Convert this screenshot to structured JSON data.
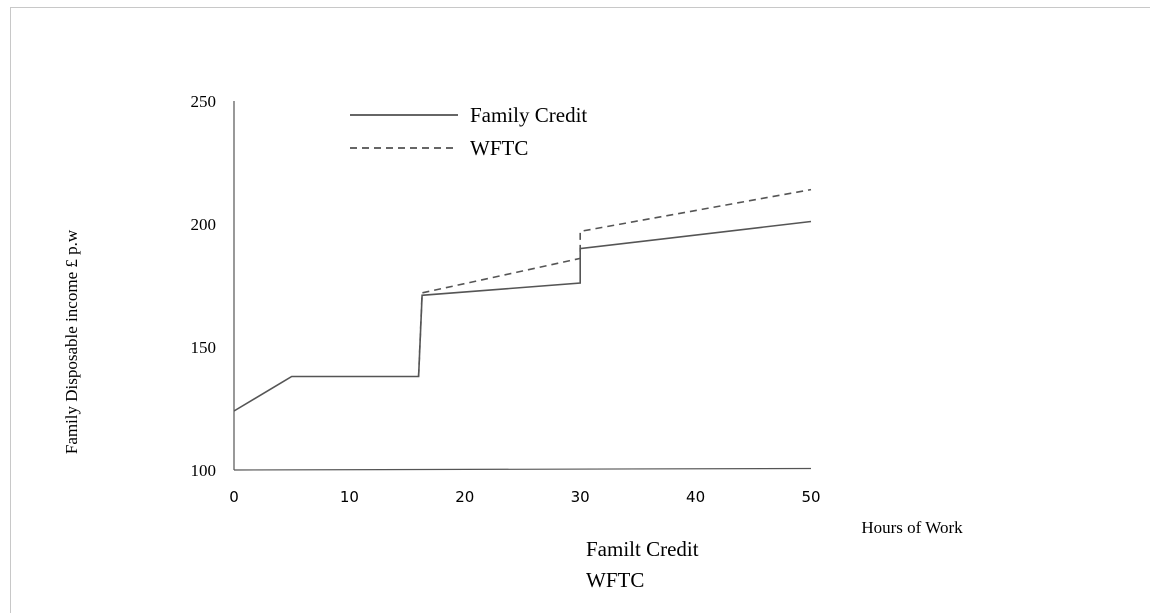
{
  "chart_data": {
    "type": "line",
    "title": "",
    "xlabel": "Hours of Work",
    "ylabel": "Family Disposable income £ p.w",
    "xlim": [
      0,
      50
    ],
    "ylim": [
      100,
      250
    ],
    "x_ticks": [
      "0",
      "10",
      "20",
      "30",
      "40",
      "50"
    ],
    "y_ticks": [
      "100",
      "150",
      "200",
      "250"
    ],
    "grid": false,
    "legend_position": "top-left",
    "series": [
      {
        "name": "Family Credit",
        "style": "solid",
        "color": "#555555",
        "points": [
          [
            0,
            124
          ],
          [
            5,
            138
          ],
          [
            16,
            138
          ],
          [
            16.3,
            171
          ],
          [
            30,
            176
          ],
          [
            30,
            190
          ],
          [
            50,
            201
          ]
        ]
      },
      {
        "name": "WFTC",
        "style": "dashed",
        "color": "#555555",
        "points": [
          [
            16,
            138
          ],
          [
            16.3,
            172
          ],
          [
            30,
            186
          ],
          [
            30,
            197
          ],
          [
            50,
            214
          ]
        ]
      }
    ],
    "caption_lines": [
      "Familt Credit",
      "WFTC"
    ]
  }
}
